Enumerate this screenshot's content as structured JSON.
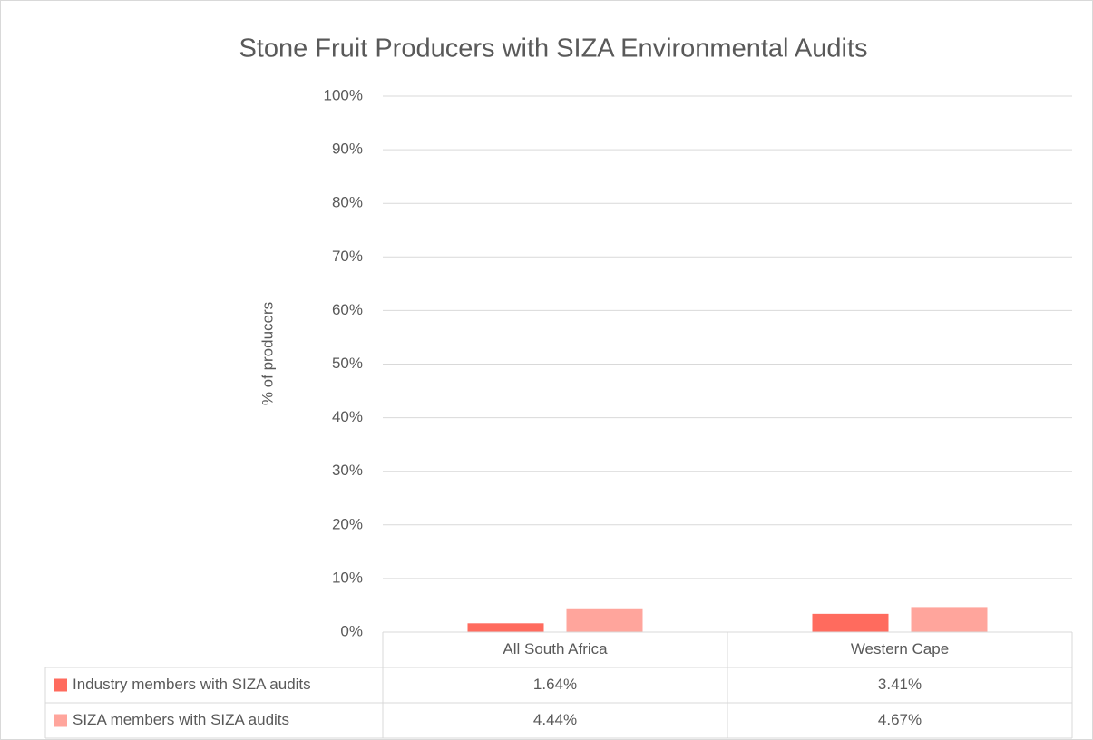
{
  "chart_data": {
    "type": "bar",
    "title": "Stone Fruit Producers with SIZA Environmental Audits",
    "y_label": "% of producers",
    "categories": [
      "All South Africa",
      "Western Cape"
    ],
    "series": [
      {
        "name": "Industry members with SIZA audits",
        "color": "#ff6b5e",
        "values": [
          1.64,
          3.41
        ],
        "value_labels": [
          "1.64%",
          "3.41%"
        ]
      },
      {
        "name": "SIZA members with SIZA audits",
        "color": "#ffa59c",
        "values": [
          4.44,
          4.67
        ],
        "value_labels": [
          "4.44%",
          "4.67%"
        ]
      }
    ],
    "ylim": [
      0,
      100
    ],
    "yticks": [
      {
        "value": 0,
        "label": "0%"
      },
      {
        "value": 10,
        "label": "10%"
      },
      {
        "value": 20,
        "label": "20%"
      },
      {
        "value": 30,
        "label": "30%"
      },
      {
        "value": 40,
        "label": "40%"
      },
      {
        "value": 50,
        "label": "50%"
      },
      {
        "value": 60,
        "label": "60%"
      },
      {
        "value": 70,
        "label": "70%"
      },
      {
        "value": 80,
        "label": "80%"
      },
      {
        "value": 90,
        "label": "90%"
      },
      {
        "value": 100,
        "label": "100%"
      }
    ],
    "grid": true,
    "data_table": true
  }
}
